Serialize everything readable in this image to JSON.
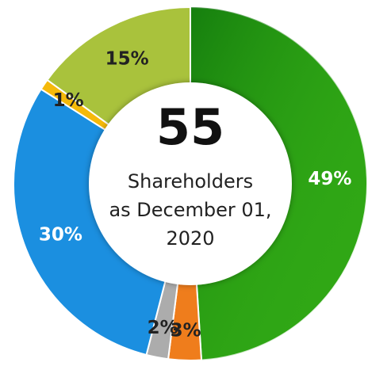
{
  "chart_data": {
    "type": "donut",
    "center_value": "55",
    "center_text": [
      "Shareholders",
      "as December 01,",
      "2020"
    ],
    "values": [
      49,
      3,
      2,
      30,
      1,
      15
    ],
    "value_labels": [
      "49%",
      "3%",
      "2%",
      "30%",
      "1%",
      "15%"
    ],
    "colors": [
      "#2ea515",
      "#ef7d1c",
      "#acacac",
      "#1b8fe0",
      "#f5b90a",
      "#a9c23c"
    ],
    "label_colors": [
      "#ffffff",
      "#222222",
      "#222222",
      "#ffffff",
      "#222222",
      "#222222"
    ]
  }
}
